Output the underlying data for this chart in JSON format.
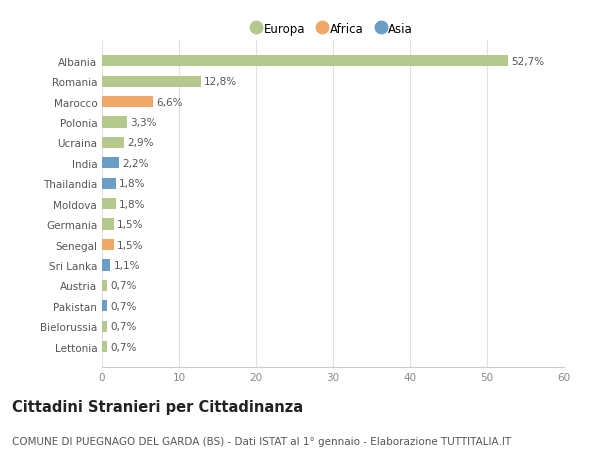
{
  "countries": [
    "Albania",
    "Romania",
    "Marocco",
    "Polonia",
    "Ucraina",
    "India",
    "Thailandia",
    "Moldova",
    "Germania",
    "Senegal",
    "Sri Lanka",
    "Austria",
    "Pakistan",
    "Bielorussia",
    "Lettonia"
  ],
  "values": [
    52.7,
    12.8,
    6.6,
    3.3,
    2.9,
    2.2,
    1.8,
    1.8,
    1.5,
    1.5,
    1.1,
    0.7,
    0.7,
    0.7,
    0.7
  ],
  "labels": [
    "52,7%",
    "12,8%",
    "6,6%",
    "3,3%",
    "2,9%",
    "2,2%",
    "1,8%",
    "1,8%",
    "1,5%",
    "1,5%",
    "1,1%",
    "0,7%",
    "0,7%",
    "0,7%",
    "0,7%"
  ],
  "continents": [
    "Europa",
    "Europa",
    "Africa",
    "Europa",
    "Europa",
    "Asia",
    "Asia",
    "Europa",
    "Europa",
    "Africa",
    "Asia",
    "Europa",
    "Asia",
    "Europa",
    "Europa"
  ],
  "colors": {
    "Europa": "#b5c98e",
    "Africa": "#f0a868",
    "Asia": "#6a9ec5"
  },
  "xlim": [
    0,
    60
  ],
  "xticks": [
    0,
    10,
    20,
    30,
    40,
    50,
    60
  ],
  "title": "Cittadini Stranieri per Cittadinanza",
  "subtitle": "COMUNE DI PUEGNAGO DEL GARDA (BS) - Dati ISTAT al 1° gennaio - Elaborazione TUTTITALIA.IT",
  "background_color": "#ffffff",
  "grid_color": "#e0e0e0",
  "bar_height": 0.55,
  "label_fontsize": 7.5,
  "tick_fontsize": 7.5,
  "title_fontsize": 10.5,
  "subtitle_fontsize": 7.5
}
